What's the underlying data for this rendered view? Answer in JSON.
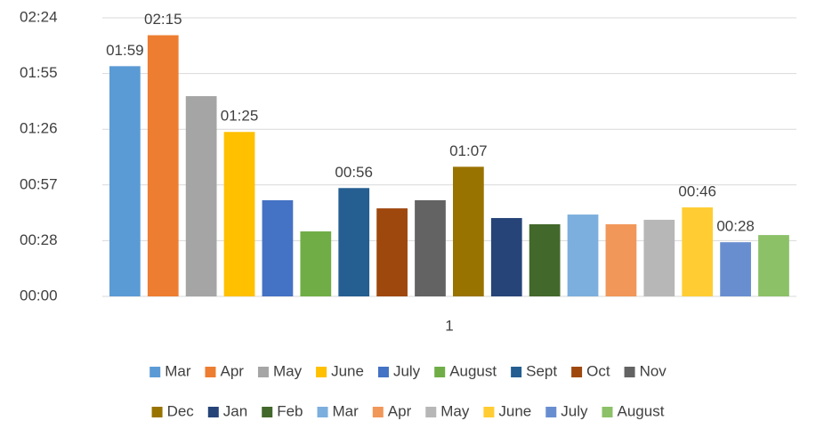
{
  "chart_data": {
    "type": "bar",
    "categories": [
      "1"
    ],
    "ylim": [
      0,
      144
    ],
    "yticks": [
      {
        "value": 0,
        "label": "00:00"
      },
      {
        "value": 28.8,
        "label": "00:28"
      },
      {
        "value": 57.6,
        "label": "00:57"
      },
      {
        "value": 86.4,
        "label": "01:26"
      },
      {
        "value": 115.2,
        "label": "01:55"
      },
      {
        "value": 144,
        "label": "02:24"
      }
    ],
    "grid": true,
    "legend": "bottom",
    "series": [
      {
        "name": "Mar",
        "color": "#5b9bd5",
        "values": [
          119
        ],
        "value_labels": [
          "01:59"
        ]
      },
      {
        "name": "Apr",
        "color": "#ed7d31",
        "values": [
          135
        ],
        "value_labels": [
          "02:15"
        ]
      },
      {
        "name": "May",
        "color": "#a5a5a5",
        "values": [
          103.5
        ]
      },
      {
        "name": "June",
        "color": "#ffc000",
        "values": [
          85
        ],
        "value_labels": [
          "01:25"
        ]
      },
      {
        "name": "July",
        "color": "#4472c4",
        "values": [
          49.7
        ]
      },
      {
        "name": "August",
        "color": "#70ad47",
        "values": [
          33.6
        ]
      },
      {
        "name": "Sept",
        "color": "#255e91",
        "values": [
          56
        ],
        "value_labels": [
          "00:56"
        ]
      },
      {
        "name": "Oct",
        "color": "#9e480e",
        "values": [
          45.5
        ]
      },
      {
        "name": "Nov",
        "color": "#636363",
        "values": [
          49.7
        ]
      },
      {
        "name": "Dec",
        "color": "#997300",
        "values": [
          67
        ],
        "value_labels": [
          "01:07"
        ]
      },
      {
        "name": "Jan",
        "color": "#264478",
        "values": [
          40.5
        ]
      },
      {
        "name": "Feb",
        "color": "#43682b",
        "values": [
          37.3
        ]
      },
      {
        "name": "Mar",
        "color": "#7cafdd",
        "values": [
          42.3
        ]
      },
      {
        "name": "Apr",
        "color": "#f1975a",
        "values": [
          37.3
        ]
      },
      {
        "name": "May",
        "color": "#b7b7b7",
        "values": [
          39.6
        ]
      },
      {
        "name": "June",
        "color": "#ffcd33",
        "values": [
          46
        ],
        "value_labels": [
          "00:46"
        ]
      },
      {
        "name": "July",
        "color": "#698ed0",
        "values": [
          28
        ],
        "value_labels": [
          "00:28"
        ]
      },
      {
        "name": "August",
        "color": "#8cc168",
        "values": [
          31.7
        ]
      }
    ]
  }
}
